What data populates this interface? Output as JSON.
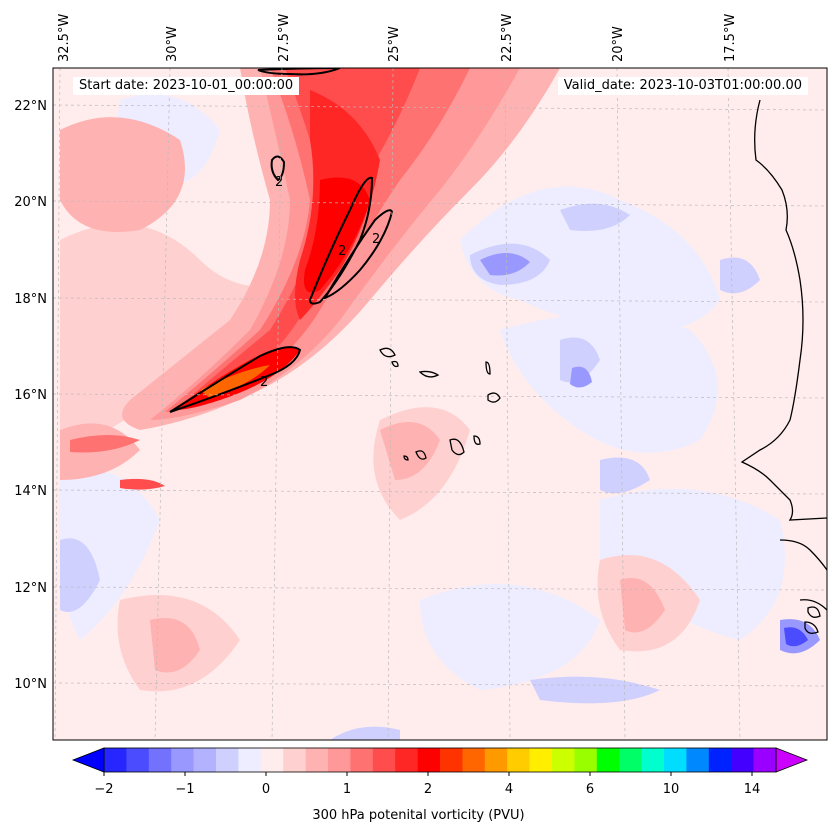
{
  "header": {
    "start_date": "Start date: 2023-10-01_00:00:00",
    "valid_date": "Valid_date: 2023-10-03T01:00:00.00"
  },
  "longitudes": [
    "32.5°W",
    "30°W",
    "27.5°W",
    "25°W",
    "22.5°W",
    "20°W",
    "17.5°W"
  ],
  "latitudes": [
    "22°N",
    "20°N",
    "18°N",
    "16°N",
    "14°N",
    "12°N",
    "10°N"
  ],
  "colorbar": {
    "label": "300 hPa potenital vorticity (PVU)",
    "ticks": [
      "−2",
      "−1",
      "0",
      "1",
      "2",
      "4",
      "6",
      "10",
      "14"
    ],
    "colors": [
      "#0000ff",
      "#2626ff",
      "#4c4cff",
      "#7272ff",
      "#9898ff",
      "#b2b2ff",
      "#d0d0ff",
      "#ededff",
      "#ffeded",
      "#ffd0d0",
      "#ffb2b2",
      "#ff9898",
      "#ff7272",
      "#ff4c4c",
      "#ff2626",
      "#ff0000",
      "#ff3300",
      "#ff6600",
      "#ff9900",
      "#ffcc00",
      "#ffee00",
      "#ccff00",
      "#99ff00",
      "#00ff00",
      "#00ff66",
      "#00ffcc",
      "#00ddff",
      "#0088ff",
      "#0022ff",
      "#4400ff",
      "#9900ff",
      "#cc00ff"
    ]
  },
  "contour_labels": [
    "2",
    "2",
    "2",
    "2"
  ]
}
